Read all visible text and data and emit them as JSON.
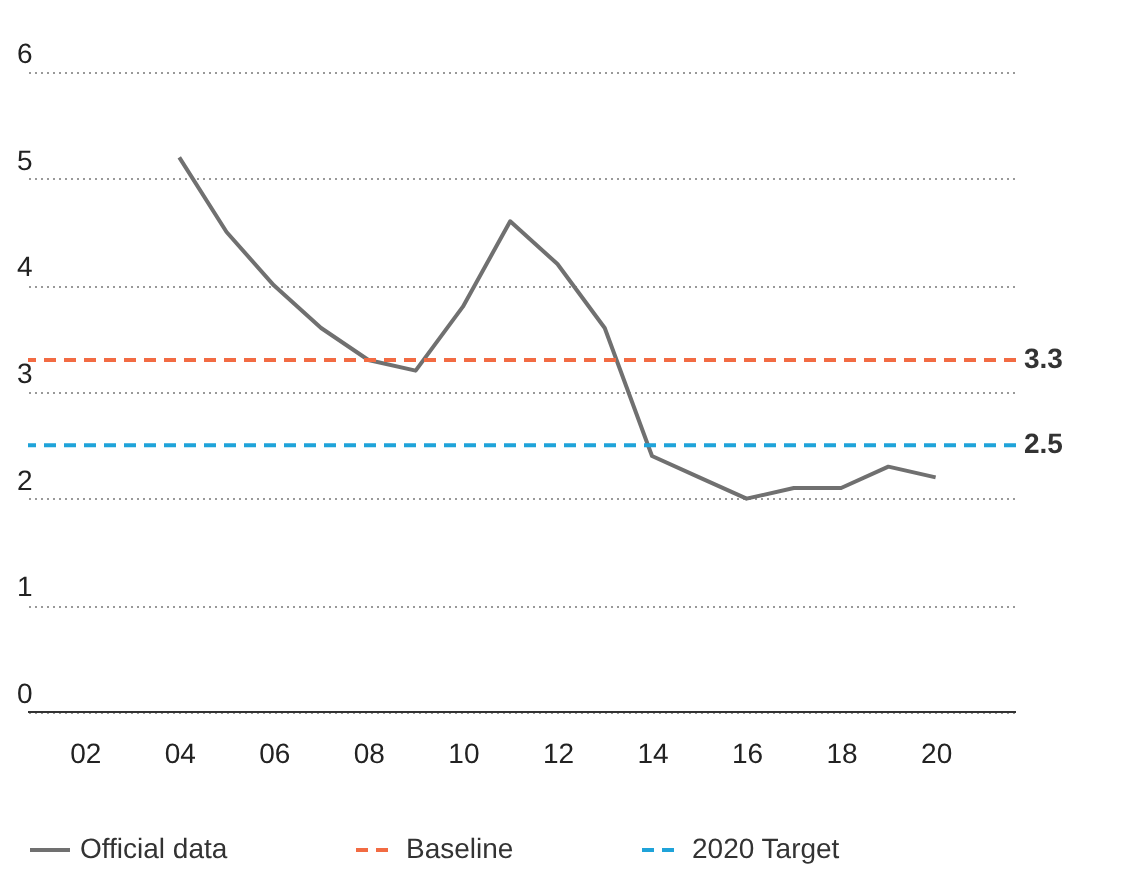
{
  "chart_data": {
    "type": "line",
    "x": [
      2004,
      2005,
      2006,
      2007,
      2008,
      2009,
      2010,
      2011,
      2012,
      2013,
      2014,
      2015,
      2016,
      2017,
      2018,
      2019,
      2020
    ],
    "series": [
      {
        "name": "Official data",
        "color": "#707070",
        "values": [
          5.2,
          4.5,
          4.0,
          3.6,
          3.3,
          3.2,
          3.8,
          4.6,
          4.2,
          3.6,
          2.4,
          2.2,
          2.0,
          2.1,
          2.1,
          2.3,
          2.2
        ]
      }
    ],
    "ref_lines": [
      {
        "axis": "y",
        "value": 3.3,
        "label": "Baseline",
        "color": "#f26b43",
        "line_style": "dashed"
      },
      {
        "axis": "y",
        "value": 2.5,
        "label": "2020 Target",
        "color": "#1fa3d9",
        "line_style": "dashed"
      }
    ],
    "annotations": [
      {
        "text": "3.3",
        "x": 2021.7,
        "y": 3.3
      },
      {
        "text": "2.5",
        "x": 2021.7,
        "y": 2.5
      }
    ],
    "xlim": [
      2000.8,
      2021.7
    ],
    "xticks": [
      {
        "value": 2002,
        "label": "02"
      },
      {
        "value": 2004,
        "label": "04"
      },
      {
        "value": 2006,
        "label": "06"
      },
      {
        "value": 2008,
        "label": "08"
      },
      {
        "value": 2010,
        "label": "10"
      },
      {
        "value": 2012,
        "label": "12"
      },
      {
        "value": 2014,
        "label": "14"
      },
      {
        "value": 2016,
        "label": "16"
      },
      {
        "value": 2018,
        "label": "18"
      },
      {
        "value": 2020,
        "label": "20"
      }
    ],
    "ylim": [
      0,
      6
    ],
    "yticks": [
      0,
      1,
      2,
      3,
      4,
      5,
      6
    ],
    "grid": "y",
    "legend": "bottom",
    "line_style": "solid",
    "marker": "none"
  }
}
